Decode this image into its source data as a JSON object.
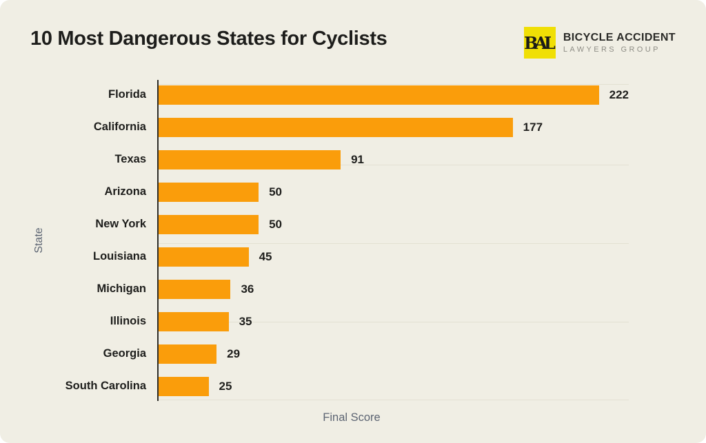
{
  "header": {
    "title": "10 Most Dangerous States for Cyclists",
    "logo": {
      "monogram": "BAL",
      "name": "BICYCLE ACCIDENT",
      "subtitle": "LAWYERS GROUP",
      "mark_bg_color": "#F0DF05"
    }
  },
  "chart_data": {
    "type": "bar",
    "orientation": "horizontal",
    "title": "10 Most Dangerous States for Cyclists",
    "categories": [
      "Florida",
      "California",
      "Texas",
      "Arizona",
      "New York",
      "Louisiana",
      "Michigan",
      "Illinois",
      "Georgia",
      "South Carolina"
    ],
    "values": [
      222,
      177,
      91,
      50,
      50,
      45,
      36,
      35,
      29,
      25
    ],
    "xlabel": "Final Score",
    "ylabel": "State",
    "xlim": [
      0,
      235
    ],
    "grid": "faint horizontal lines",
    "legend": "none",
    "bar_color": "#FA9D0B",
    "background_color": "#F0EEE4",
    "axis_text_color": "#5C6472"
  }
}
